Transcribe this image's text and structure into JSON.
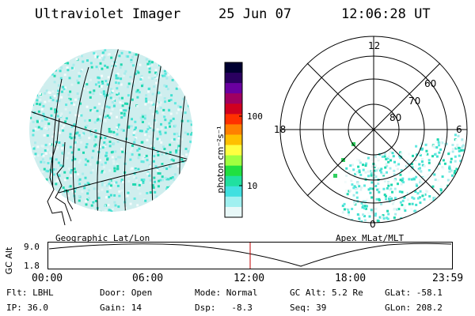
{
  "header": {
    "title": "Ultraviolet Imager",
    "date": "25 Jun 07",
    "time": "12:06:28 UT"
  },
  "colorbar": {
    "unit": "photon cm⁻²s⁻¹",
    "ticks": [
      "100",
      "10"
    ],
    "colors": [
      "#000030",
      "#2a0060",
      "#6a00a0",
      "#a00060",
      "#d00020",
      "#ff3000",
      "#ff8000",
      "#ffc000",
      "#ffff40",
      "#a0ff40",
      "#20e040",
      "#20e0a0",
      "#40e0e0",
      "#a0f0f0",
      "#e8f8f8"
    ]
  },
  "geo_map": {
    "label": "Geographic Lat/Lon"
  },
  "polar_map": {
    "label": "Apex MLat/MLT",
    "mlt_labels": [
      "12",
      "18",
      "6",
      "0"
    ],
    "lat_labels": [
      "80",
      "70",
      "60"
    ]
  },
  "timeline": {
    "axis_label": "GC Alt",
    "y_ticks": [
      "9.0",
      "1.8"
    ],
    "x_ticks": [
      "00:00",
      "06:00",
      "12:00",
      "18:00",
      "23:59"
    ],
    "current_time": "12:06"
  },
  "status": {
    "row1": [
      {
        "label": "Flt:",
        "value": "LBHL"
      },
      {
        "label": "Door:",
        "value": "Open"
      },
      {
        "label": "Mode:",
        "value": "Normal"
      },
      {
        "label": "GC Alt:",
        "value": "5.2 Re"
      },
      {
        "label": "GLat:",
        "value": "-58.1"
      }
    ],
    "row2": [
      {
        "label": "IP:",
        "value": "36.0"
      },
      {
        "label": "Gain:",
        "value": "14"
      },
      {
        "label": "Dsp:",
        "value": "-8.3"
      },
      {
        "label": "Seq:",
        "value": "39"
      },
      {
        "label": "GLon:",
        "value": "208.2"
      }
    ]
  }
}
